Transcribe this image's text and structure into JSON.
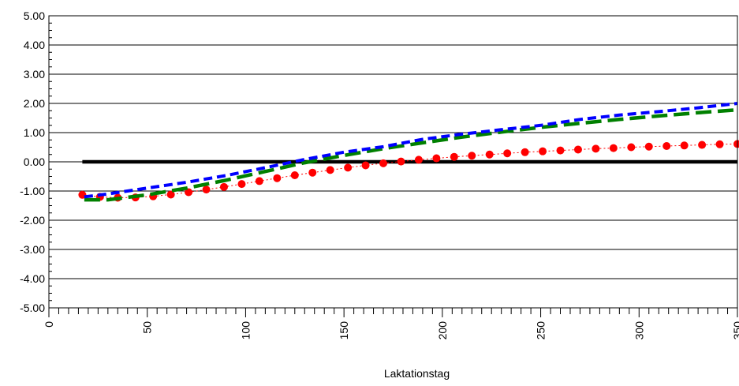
{
  "chart_data": {
    "type": "line",
    "title": "",
    "xlabel": "Laktationstag",
    "ylabel": "",
    "xlim": [
      0,
      350
    ],
    "ylim": [
      -5,
      5
    ],
    "x_ticks": [
      "0",
      "50",
      "100",
      "150",
      "200",
      "250",
      "300",
      "350"
    ],
    "y_ticks": [
      "5.00",
      "4.00",
      "3.00",
      "2.00",
      "1.00",
      "0.00",
      "-1.00",
      "-2.00",
      "-3.00",
      "-4.00",
      "-5.00"
    ],
    "grid": "horizontal",
    "series": [
      {
        "style": "solid-black-baseline",
        "color": "#000000",
        "x": [
          17,
          350
        ],
        "y": [
          0.0,
          0.0
        ]
      },
      {
        "style": "red-dotted-markers",
        "color": "#ff0000",
        "x": [
          17,
          26,
          35,
          44,
          53,
          62,
          71,
          80,
          89,
          98,
          107,
          116,
          125,
          134,
          143,
          152,
          161,
          170,
          179,
          188,
          197,
          206,
          215,
          224,
          233,
          242,
          251,
          260,
          269,
          278,
          287,
          296,
          305,
          314,
          323,
          332,
          341,
          350
        ],
        "y": [
          -1.13,
          -1.2,
          -1.23,
          -1.22,
          -1.18,
          -1.12,
          -1.04,
          -0.95,
          -0.86,
          -0.76,
          -0.66,
          -0.56,
          -0.46,
          -0.37,
          -0.28,
          -0.2,
          -0.12,
          -0.05,
          0.01,
          0.07,
          0.12,
          0.17,
          0.21,
          0.25,
          0.29,
          0.33,
          0.36,
          0.39,
          0.42,
          0.45,
          0.47,
          0.5,
          0.52,
          0.54,
          0.56,
          0.58,
          0.6,
          0.61
        ]
      },
      {
        "style": "blue-dashed",
        "color": "#0000ff",
        "x": [
          18,
          30,
          50,
          70,
          90,
          110,
          130,
          150,
          170,
          190,
          210,
          230,
          250,
          270,
          290,
          310,
          330,
          350
        ],
        "y": [
          -1.2,
          -1.1,
          -0.9,
          -0.7,
          -0.47,
          -0.2,
          0.08,
          0.33,
          0.52,
          0.77,
          0.95,
          1.1,
          1.25,
          1.45,
          1.6,
          1.72,
          1.85,
          2.0
        ]
      },
      {
        "style": "green-long-dashed",
        "color": "#008000",
        "x": [
          18,
          30,
          50,
          70,
          90,
          110,
          130,
          150,
          170,
          190,
          210,
          230,
          250,
          270,
          290,
          310,
          330,
          350
        ],
        "y": [
          -1.3,
          -1.3,
          -1.13,
          -0.9,
          -0.63,
          -0.33,
          -0.03,
          0.22,
          0.45,
          0.65,
          0.85,
          1.02,
          1.18,
          1.32,
          1.45,
          1.57,
          1.68,
          1.78
        ]
      }
    ]
  }
}
